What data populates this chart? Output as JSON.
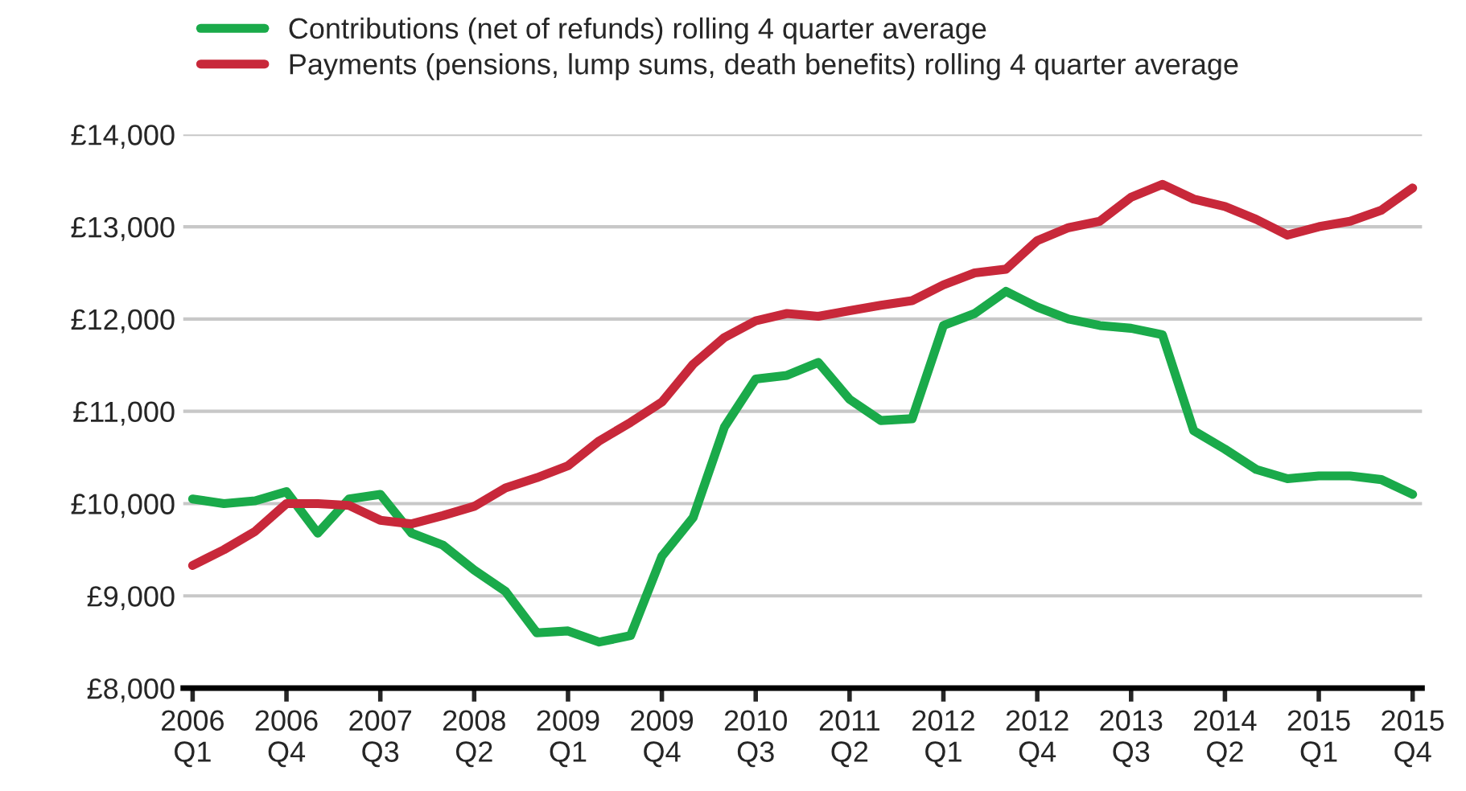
{
  "chart_data": {
    "type": "line",
    "categories": [
      "2006\nQ1",
      null,
      null,
      "2006\nQ4",
      null,
      null,
      "2007\nQ3",
      null,
      null,
      "2008\nQ2",
      null,
      null,
      "2009\nQ1",
      null,
      null,
      "2009\nQ4",
      null,
      null,
      "2010\nQ3",
      null,
      null,
      "2011\nQ2",
      null,
      null,
      "2012\nQ1",
      null,
      null,
      "2012\nQ4",
      null,
      null,
      "2013\nQ3",
      null,
      null,
      "2014\nQ2",
      null,
      null,
      "2015\nQ1",
      null,
      null,
      "2015\nQ4"
    ],
    "series": [
      {
        "name": "Contributions (net of refunds) rolling 4 quarter average",
        "color": "#1aaa4a",
        "values": [
          10050,
          10000,
          10030,
          10130,
          9680,
          10050,
          10100,
          9680,
          9550,
          9280,
          9050,
          8600,
          8620,
          8500,
          8570,
          9430,
          9850,
          10830,
          11350,
          11390,
          11530,
          11130,
          10900,
          10920,
          11930,
          12060,
          12300,
          12130,
          12000,
          11930,
          11900,
          11830,
          10790,
          10590,
          10370,
          10270,
          10300,
          10300,
          10260,
          10100
        ]
      },
      {
        "name": "Payments (pensions, lump sums, death benefits) rolling 4 quarter average",
        "color": "#c8283a",
        "values": [
          9330,
          9500,
          9700,
          10000,
          10000,
          9980,
          9820,
          9780,
          9870,
          9970,
          10170,
          10280,
          10410,
          10680,
          10880,
          11100,
          11510,
          11800,
          11980,
          12060,
          12030,
          12090,
          12150,
          12200,
          12370,
          12500,
          12540,
          12850,
          12990,
          13060,
          13320,
          13460,
          13300,
          13220,
          13080,
          12910,
          13000,
          13060,
          13180,
          13420
        ]
      }
    ],
    "ylim": [
      8000,
      14000
    ],
    "yticks": [
      {
        "value": 8000,
        "label": "£8,000"
      },
      {
        "value": 9000,
        "label": "£9,000"
      },
      {
        "value": 10000,
        "label": "£10,000"
      },
      {
        "value": 11000,
        "label": "£11,000"
      },
      {
        "value": 12000,
        "label": "£12,000"
      },
      {
        "value": 13000,
        "label": "£13,000"
      },
      {
        "value": 14000,
        "label": "£14,000"
      }
    ],
    "grid": "y",
    "legend": "top left",
    "marker": "none",
    "line_style": "solid"
  }
}
